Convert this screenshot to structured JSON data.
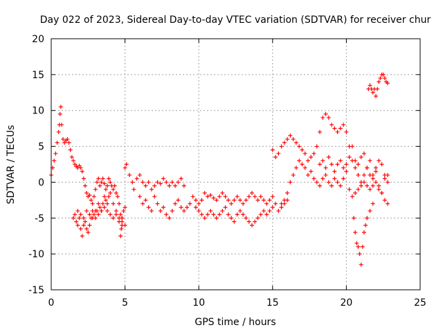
{
  "chart_data": {
    "type": "scatter",
    "title": "Day 022 of 2023, Sidereal Day-to-day VTEC variation (SDTVAR) for receiver chur",
    "xlabel": "GPS time / hours",
    "ylabel": "SDTVAR / TECUs",
    "xlim": [
      0,
      25
    ],
    "ylim": [
      -15,
      20
    ],
    "x_ticks": [
      0,
      5,
      10,
      15,
      20,
      25
    ],
    "y_ticks": [
      -15,
      -10,
      -5,
      0,
      5,
      10,
      15,
      20
    ],
    "grid": true,
    "marker": "+",
    "series": [
      {
        "name": "SDTVAR",
        "color": "#ff0000",
        "x": [
          0.0,
          0.1,
          0.2,
          0.3,
          0.4,
          0.5,
          0.55,
          0.6,
          0.65,
          0.7,
          0.8,
          0.9,
          1.0,
          1.1,
          1.2,
          1.3,
          1.4,
          1.5,
          1.6,
          1.7,
          1.8,
          1.9,
          2.0,
          2.1,
          2.2,
          2.3,
          2.4,
          2.5,
          2.6,
          2.7,
          2.8,
          2.9,
          3.0,
          3.1,
          3.2,
          3.3,
          3.4,
          3.5,
          3.6,
          3.7,
          3.8,
          3.9,
          4.0,
          4.1,
          4.2,
          4.3,
          4.4,
          4.5,
          4.6,
          4.7,
          4.8,
          4.9,
          5.0,
          1.5,
          1.6,
          1.7,
          1.8,
          1.9,
          2.0,
          2.1,
          2.2,
          2.3,
          2.4,
          2.5,
          2.6,
          2.7,
          2.8,
          2.9,
          3.0,
          3.1,
          3.2,
          3.3,
          3.4,
          3.5,
          3.6,
          3.7,
          3.8,
          3.9,
          4.0,
          4.2,
          4.4,
          4.6,
          4.8,
          5.0,
          1.8,
          2.0,
          2.2,
          2.4,
          2.6,
          2.8,
          3.0,
          3.2,
          3.4,
          3.6,
          3.8,
          4.0,
          4.2,
          4.4,
          4.6,
          4.8,
          4.7,
          4.75,
          4.8,
          5.0,
          5.1,
          5.3,
          5.5,
          5.6,
          5.8,
          6.0,
          6.2,
          6.4,
          6.6,
          6.8,
          7.0,
          7.2,
          7.4,
          7.6,
          7.8,
          8.0,
          8.2,
          8.4,
          8.6,
          8.8,
          9.0,
          6.0,
          6.2,
          6.4,
          6.6,
          6.8,
          7.0,
          7.2,
          7.4,
          7.6,
          7.8,
          8.0,
          8.2,
          8.4,
          8.6,
          8.8,
          9.0,
          9.2,
          9.4,
          9.6,
          9.8,
          10.0,
          10.2,
          10.4,
          10.6,
          10.8,
          11.0,
          11.2,
          11.4,
          11.6,
          11.8,
          12.0,
          12.2,
          12.4,
          12.6,
          12.8,
          13.0,
          13.2,
          13.4,
          13.6,
          13.8,
          14.0,
          14.2,
          14.4,
          14.6,
          14.8,
          15.0,
          9.8,
          10.0,
          10.2,
          10.4,
          10.6,
          10.8,
          11.0,
          11.2,
          11.4,
          11.6,
          11.8,
          12.0,
          12.2,
          12.4,
          12.6,
          12.8,
          13.0,
          13.2,
          13.4,
          13.6,
          13.8,
          14.0,
          14.2,
          14.4,
          14.6,
          14.8,
          15.0,
          15.2,
          15.4,
          15.6,
          15.8,
          16.0,
          15.0,
          15.2,
          15.4,
          15.6,
          15.8,
          16.0,
          16.2,
          16.4,
          16.6,
          16.8,
          17.0,
          17.2,
          17.4,
          17.6,
          17.8,
          18.0,
          18.2,
          18.4,
          18.6,
          18.8,
          19.0,
          19.2,
          19.4,
          19.6,
          19.8,
          20.0,
          20.2,
          20.4,
          20.6,
          20.8,
          21.0,
          21.2,
          21.4,
          21.6,
          21.8,
          22.0,
          22.2,
          22.4,
          22.6,
          22.8,
          15.6,
          15.8,
          16.0,
          16.2,
          16.4,
          16.6,
          16.8,
          17.0,
          17.2,
          17.4,
          17.6,
          17.8,
          18.0,
          18.2,
          18.4,
          18.6,
          18.8,
          19.0,
          19.2,
          19.4,
          19.6,
          19.8,
          20.0,
          20.2,
          20.4,
          20.6,
          20.8,
          21.0,
          21.2,
          21.4,
          21.6,
          21.8,
          22.0,
          22.2,
          22.4,
          22.6,
          22.8,
          18.2,
          18.4,
          18.6,
          18.8,
          19.0,
          19.2,
          19.4,
          19.6,
          19.8,
          20.0,
          20.2,
          20.4,
          20.6,
          20.8,
          21.0,
          21.2,
          21.4,
          21.6,
          21.8,
          22.0,
          22.2,
          22.4,
          22.6,
          22.8,
          20.5,
          20.6,
          20.7,
          20.8,
          20.9,
          21.0,
          21.1,
          21.2,
          21.3,
          21.4,
          21.6,
          21.8,
          21.5,
          21.6,
          21.7,
          21.8,
          21.9,
          22.0,
          22.1,
          22.2,
          22.3,
          22.4,
          22.5,
          22.6,
          22.7,
          22.8
        ],
        "y": [
          1.0,
          2.0,
          3.0,
          4.0,
          5.5,
          7.0,
          8.0,
          9.5,
          10.5,
          8.0,
          6.0,
          5.5,
          5.8,
          6.0,
          5.5,
          4.5,
          3.5,
          3.0,
          2.5,
          2.2,
          2.0,
          2.3,
          2.0,
          1.5,
          0.5,
          -0.5,
          -1.5,
          -2.0,
          -1.8,
          -2.5,
          -3.0,
          -2.0,
          -1.0,
          0.0,
          0.5,
          -0.5,
          0.0,
          0.5,
          -0.2,
          -1.0,
          -0.5,
          0.5,
          0.0,
          -0.5,
          -1.0,
          -0.5,
          -1.5,
          -2.0,
          -3.0,
          -4.5,
          -5.0,
          -4.0,
          -3.5,
          -5.0,
          -4.5,
          -5.5,
          -6.0,
          -5.0,
          -6.5,
          -7.5,
          -6.0,
          -5.5,
          -6.5,
          -7.0,
          -6.0,
          -5.0,
          -4.0,
          -4.5,
          -5.0,
          -4.0,
          -3.0,
          -3.5,
          -4.0,
          -3.0,
          -2.0,
          -2.5,
          -3.0,
          -2.0,
          -1.5,
          -3.0,
          -4.0,
          -5.0,
          -5.5,
          -6.0,
          -4.0,
          -4.5,
          -5.0,
          -4.0,
          -4.5,
          -5.0,
          -4.0,
          -4.5,
          -4.0,
          -3.5,
          -4.0,
          -4.5,
          -5.0,
          -4.5,
          -5.5,
          -6.0,
          -7.5,
          -6.5,
          -5.0,
          2.0,
          2.5,
          1.0,
          0.0,
          -1.0,
          0.5,
          1.0,
          0.0,
          -0.5,
          0.0,
          -1.0,
          -0.5,
          0.0,
          -0.2,
          0.5,
          0.0,
          -0.5,
          0.0,
          -0.5,
          0.0,
          0.5,
          -0.5,
          -2.0,
          -3.0,
          -2.5,
          -3.5,
          -4.0,
          -2.0,
          -3.0,
          -4.0,
          -3.5,
          -4.5,
          -5.0,
          -4.0,
          -3.0,
          -2.5,
          -3.5,
          -4.0,
          -3.5,
          -3.0,
          -2.0,
          -2.5,
          -3.0,
          -2.5,
          -1.5,
          -2.0,
          -1.8,
          -2.2,
          -2.5,
          -2.0,
          -1.5,
          -2.0,
          -2.5,
          -3.0,
          -2.5,
          -2.0,
          -2.5,
          -3.0,
          -2.5,
          -2.0,
          -1.5,
          -2.0,
          -2.5,
          -2.0,
          -2.5,
          -3.0,
          -2.5,
          -2.0,
          -3.5,
          -4.0,
          -4.5,
          -5.0,
          -4.5,
          -4.0,
          -4.5,
          -5.0,
          -4.5,
          -4.0,
          -3.5,
          -4.5,
          -5.0,
          -5.5,
          -4.5,
          -4.0,
          -4.5,
          -5.0,
          -5.5,
          -6.0,
          -5.5,
          -5.0,
          -4.5,
          -4.0,
          -4.5,
          -4.0,
          -3.5,
          -3.0,
          -4.0,
          -3.5,
          -3.0,
          -2.5,
          4.5,
          3.5,
          4.0,
          5.0,
          5.5,
          6.0,
          6.5,
          6.0,
          5.5,
          5.0,
          4.5,
          4.0,
          3.0,
          3.5,
          4.0,
          5.0,
          7.0,
          9.0,
          9.5,
          9.0,
          8.0,
          7.5,
          7.0,
          7.5,
          8.0,
          7.0,
          5.0,
          3.0,
          2.0,
          1.0,
          0.0,
          1.0,
          2.0,
          3.0,
          1.0,
          2.0,
          3.0,
          2.5,
          1.0,
          0.0,
          -3.0,
          -2.5,
          -1.5,
          0.0,
          1.0,
          2.0,
          3.0,
          2.5,
          2.0,
          1.0,
          1.5,
          0.5,
          0.0,
          -0.5,
          0.5,
          1.0,
          0.0,
          -0.5,
          0.5,
          0.0,
          -0.5,
          0.5,
          1.5,
          -1.0,
          -2.0,
          -1.5,
          -1.0,
          -0.5,
          0.0,
          -0.5,
          -1.0,
          -0.5,
          0.0,
          -1.0,
          -1.5,
          0.5,
          1.0,
          2.5,
          3.0,
          2.0,
          3.5,
          2.5,
          1.5,
          2.5,
          3.0,
          2.0,
          2.5,
          3.5,
          5.0,
          3.0,
          2.5,
          3.5,
          4.0,
          2.0,
          1.0,
          0.5,
          1.5,
          -0.5,
          -1.5,
          -2.5,
          -3.0,
          -5.0,
          -7.0,
          -8.5,
          -9.0,
          -10.0,
          -11.5,
          -9.0,
          -7.0,
          -6.0,
          -5.0,
          -4.0,
          -3.0,
          13.0,
          13.5,
          13.0,
          12.5,
          13.0,
          12.0,
          13.0,
          14.0,
          14.5,
          15.0,
          15.0,
          14.5,
          14.0,
          13.8
        ]
      }
    ]
  }
}
